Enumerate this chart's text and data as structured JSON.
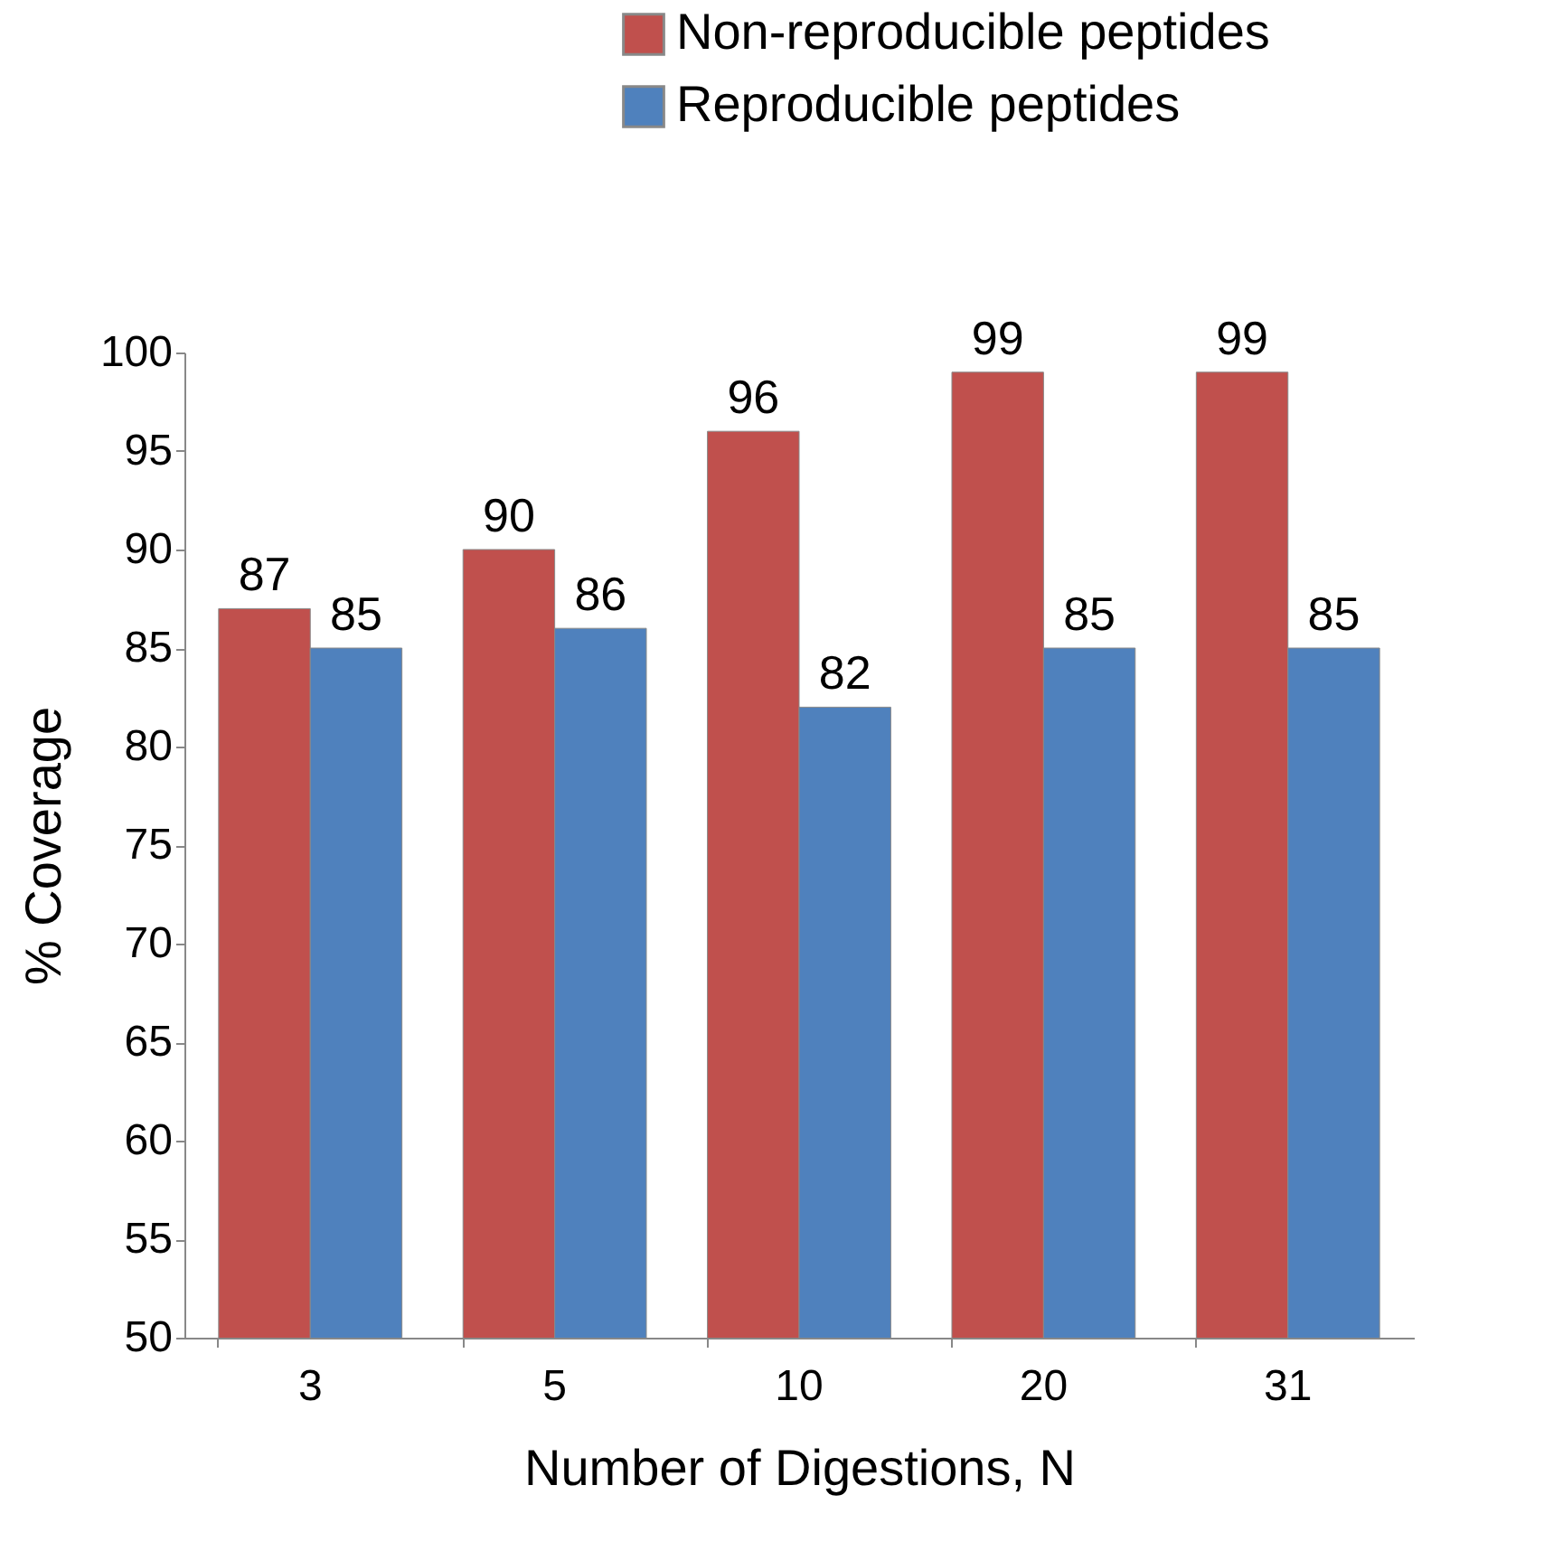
{
  "chart_data": {
    "type": "bar",
    "xlabel": "Number of Digestions, N",
    "ylabel": "% Coverage",
    "categories": [
      "3",
      "5",
      "10",
      "20",
      "31"
    ],
    "series": [
      {
        "name": "Non-reproducible peptides",
        "color": "#c0504d",
        "values": [
          87,
          90,
          96,
          99,
          99
        ]
      },
      {
        "name": "Reproducible peptides",
        "color": "#4f81bd",
        "values": [
          85,
          86,
          82,
          85,
          85
        ]
      }
    ],
    "ylim": [
      50,
      100
    ],
    "yticks": [
      50,
      55,
      60,
      65,
      70,
      75,
      80,
      85,
      90,
      95,
      100
    ],
    "data_labels": true,
    "legend": "top right",
    "grid": false
  }
}
